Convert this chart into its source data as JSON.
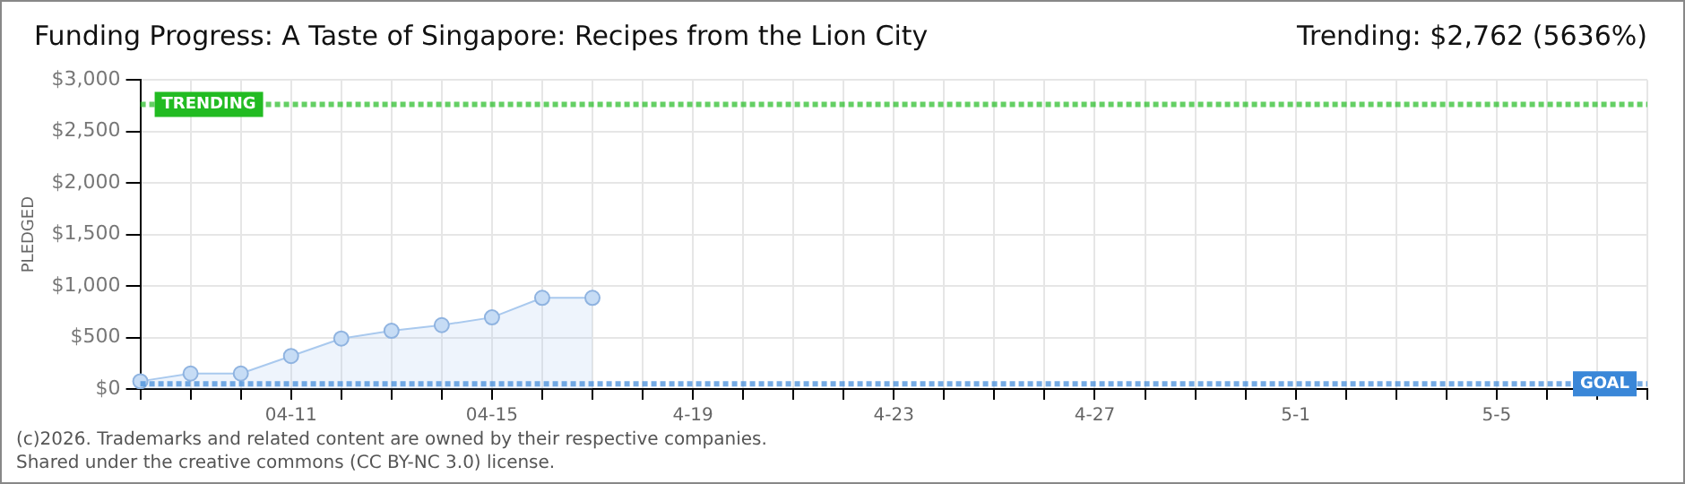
{
  "chart_data": {
    "type": "area",
    "title": "Funding Progress: A Taste of Singapore: Recipes from the Lion City",
    "subtitle": "Trending: $2,762 (5636%)",
    "ylabel": "PLEDGED",
    "categories": [
      null,
      null,
      null,
      "04-11",
      null,
      null,
      null,
      "04-15",
      null,
      null,
      null,
      "4-19",
      null,
      null,
      null,
      "4-23",
      null,
      null,
      null,
      "4-27",
      null,
      null,
      null,
      "5-1",
      null,
      null,
      null,
      "5-5",
      null,
      null,
      null
    ],
    "series": [
      {
        "color": "#a9c9ee",
        "values": [
          75,
          150,
          150,
          320,
          490,
          565,
          620,
          695,
          885,
          885,
          null,
          null,
          null,
          null,
          null,
          null,
          null,
          null,
          null,
          null,
          null,
          null,
          null,
          null,
          null,
          null,
          null,
          null,
          null,
          null,
          null
        ]
      }
    ],
    "ylim": [
      0,
      3000
    ],
    "yticks": [
      {
        "value": 0,
        "label": "$0"
      },
      {
        "value": 500,
        "label": "$500"
      },
      {
        "value": 1000,
        "label": "$1,000"
      },
      {
        "value": 1500,
        "label": "$1,500"
      },
      {
        "value": 2000,
        "label": "$2,000"
      },
      {
        "value": 2500,
        "label": "$2,500"
      },
      {
        "value": 3000,
        "label": "$3,000"
      }
    ],
    "ref_lines": [
      {
        "axis": "y",
        "value": 2762,
        "label": "TRENDING",
        "color": "#22bb22",
        "line_style": "dotted"
      },
      {
        "axis": "y",
        "value": 49,
        "label": "GOAL",
        "color": "#3a87d8",
        "line_style": "dotted"
      }
    ],
    "grid": true,
    "marker": "circle",
    "annotations": [
      "(c)2026. Trademarks and related content are owned by their respective companies.",
      "Shared under the creative commons (CC BY-NC 3.0) license."
    ]
  }
}
